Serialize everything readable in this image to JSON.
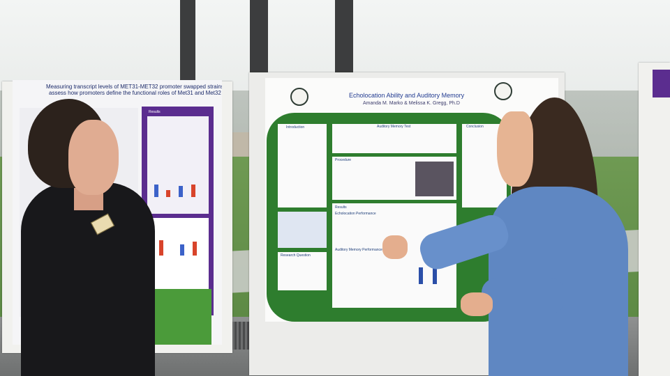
{
  "scene": {
    "description_colors": {
      "poster_green": "#2e7d2e",
      "poster_purple": "#5b2d8f",
      "blouse_blue": "#5f87c2"
    }
  },
  "left_poster": {
    "title_line1": "Measuring transcript levels of MET31-MET32 promoter swapped strains to",
    "title_line2": "assess how promoters define the functional roles of Met31 and Met32",
    "section_results": "Results"
  },
  "center_poster": {
    "title": "Echolocation Ability and Auditory Memory",
    "authors": "Amanda M. Marko & Melissa K. Gregg, Ph.D",
    "sections": {
      "introduction": "Introduction",
      "auditory_memory_test": "Auditory Memory Test",
      "procedure": "Procedure",
      "results": "Results",
      "echolocation_performance": "Echolocation Performance",
      "auditory_memory_performance": "Auditory Memory Performance",
      "research_question": "Research Question",
      "conclusion": "Conclusion"
    }
  }
}
